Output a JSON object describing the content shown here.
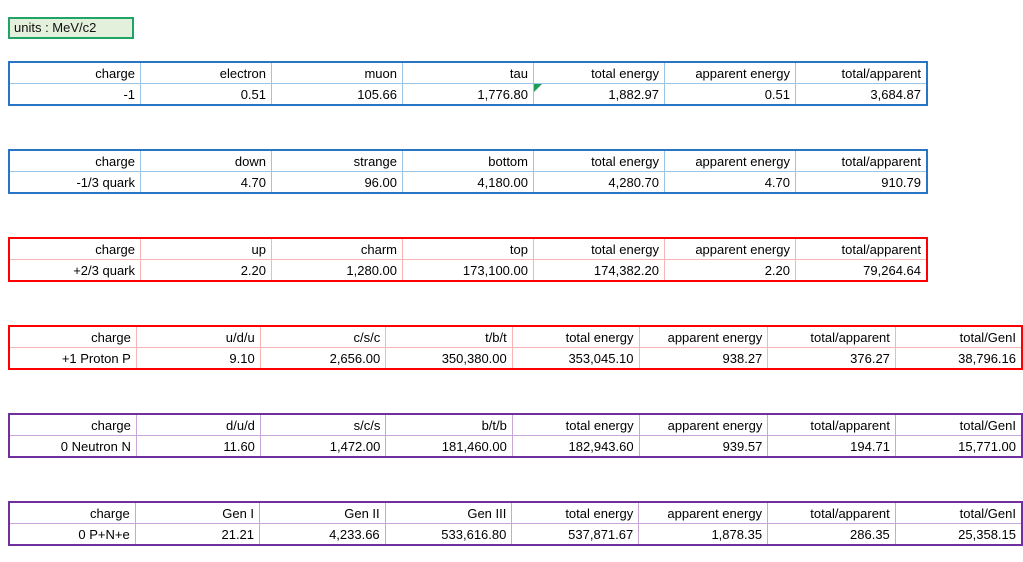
{
  "units_label": "units : MeV/c2",
  "colors": {
    "blue": "#2874C7",
    "blue_light": "#9DC3E6",
    "red": "#FF0000",
    "red_light": "#F6B4B4",
    "purple": "#7030A0",
    "purple_light": "#CBA6DB",
    "green_border": "#21A366",
    "green_fill": "#E2F0DC",
    "marker_green": "#1E9E57"
  },
  "tables": [
    {
      "name": "leptons",
      "color": "blue",
      "headers": [
        "charge",
        "electron",
        "muon",
        "tau",
        "total energy",
        "apparent energy",
        "total/apparent"
      ],
      "values": [
        "-1",
        "0.51",
        "105.66",
        "1,776.80",
        "1,882.97",
        "0.51",
        "3,684.87"
      ],
      "error_marker_col": 4
    },
    {
      "name": "down-type-quarks",
      "color": "blue",
      "headers": [
        "charge",
        "down",
        "strange",
        "bottom",
        "total energy",
        "apparent energy",
        "total/apparent"
      ],
      "values": [
        "-1/3 quark",
        "4.70",
        "96.00",
        "4,180.00",
        "4,280.70",
        "4.70",
        "910.79"
      ]
    },
    {
      "name": "up-type-quarks",
      "color": "red",
      "headers": [
        "charge",
        "up",
        "charm",
        "top",
        "total energy",
        "apparent energy",
        "total/apparent"
      ],
      "values": [
        "+2/3 quark",
        "2.20",
        "1,280.00",
        "173,100.00",
        "174,382.20",
        "2.20",
        "79,264.64"
      ]
    },
    {
      "name": "proton",
      "color": "red",
      "headers": [
        "charge",
        "u/d/u",
        "c/s/c",
        "t/b/t",
        "total energy",
        "apparent energy",
        "total/apparent",
        "total/GenI"
      ],
      "values": [
        "+1 Proton P",
        "9.10",
        "2,656.00",
        "350,380.00",
        "353,045.10",
        "938.27",
        "376.27",
        "38,796.16"
      ]
    },
    {
      "name": "neutron",
      "color": "purple",
      "headers": [
        "charge",
        "d/u/d",
        "s/c/s",
        "b/t/b",
        "total energy",
        "apparent energy",
        "total/apparent",
        "total/GenI"
      ],
      "values": [
        "0 Neutron N",
        "11.60",
        "1,472.00",
        "181,460.00",
        "182,943.60",
        "939.57",
        "194.71",
        "15,771.00"
      ]
    },
    {
      "name": "atom-pne",
      "color": "purple",
      "headers": [
        "charge",
        "Gen I",
        "Gen II",
        "Gen III",
        "total energy",
        "apparent energy",
        "total/apparent",
        "total/GenI"
      ],
      "values": [
        "0 P+N+e",
        "21.21",
        "4,233.66",
        "533,616.80",
        "537,871.67",
        "1,878.35",
        "286.35",
        "25,358.15"
      ]
    }
  ]
}
